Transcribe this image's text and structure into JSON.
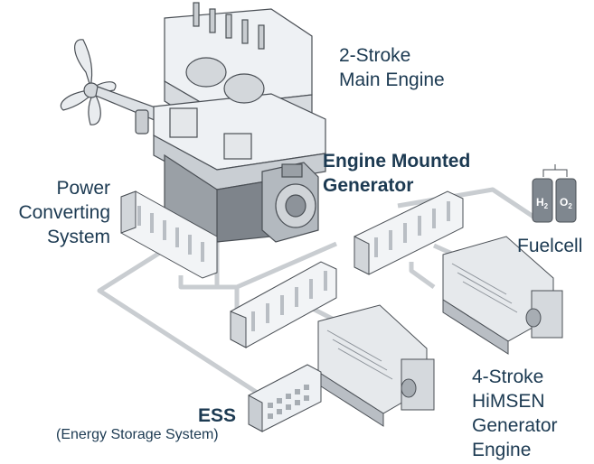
{
  "labels": {
    "main_engine": [
      "2-Stroke",
      "Main Engine"
    ],
    "engine_generator": [
      "Engine Mounted",
      "Generator"
    ],
    "power_converting": [
      "Power",
      "Converting",
      "System"
    ],
    "fuelcell": "Fuelcell",
    "fuelcell_tanks": [
      "H",
      "O"
    ],
    "ess": "ESS",
    "ess_full": "(Energy Storage System)",
    "himsen": [
      "4-Stroke",
      "HiMSEN",
      "Generator",
      "Engine"
    ]
  },
  "colors": {
    "text": "#1c3a52",
    "cable": "#c9cdd1",
    "line_art": "#4a4f55",
    "panel": "#f2f4f6",
    "shade": "#b9bec4",
    "dark_shade": "#8d939a",
    "tank": "#7f878f"
  }
}
